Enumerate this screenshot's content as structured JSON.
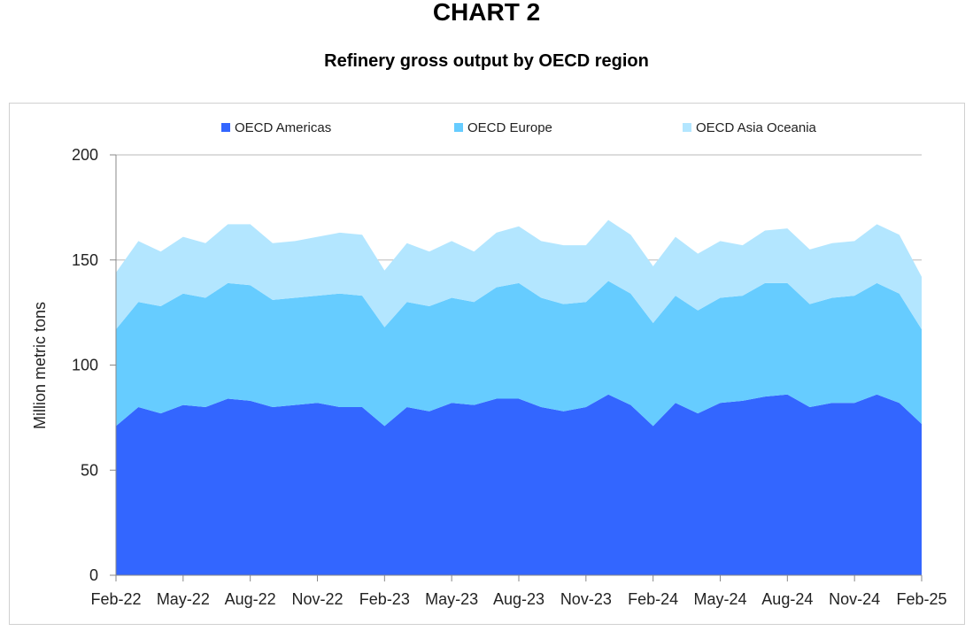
{
  "header": {
    "title": "CHART 2",
    "subtitle": "Refinery gross output by OECD region"
  },
  "chart_data": {
    "type": "area",
    "stacked": true,
    "title": "Refinery gross output by OECD region",
    "xlabel": "",
    "ylabel": "Million metric tons",
    "ylim": [
      0,
      200
    ],
    "yticks": [
      0,
      50,
      100,
      150,
      200
    ],
    "grid": "horizontal",
    "legend_position": "top",
    "x": [
      "Feb-22",
      "Mar-22",
      "Apr-22",
      "May-22",
      "Jun-22",
      "Jul-22",
      "Aug-22",
      "Sep-22",
      "Oct-22",
      "Nov-22",
      "Dec-22",
      "Jan-23",
      "Feb-23",
      "Mar-23",
      "Apr-23",
      "May-23",
      "Jun-23",
      "Jul-23",
      "Aug-23",
      "Sep-23",
      "Oct-23",
      "Nov-23",
      "Dec-23",
      "Jan-24",
      "Feb-24",
      "Mar-24",
      "Apr-24",
      "May-24",
      "Jun-24",
      "Jul-24",
      "Aug-24",
      "Sep-24",
      "Oct-24",
      "Nov-24",
      "Dec-24",
      "Jan-25",
      "Feb-25"
    ],
    "x_tick_labels": [
      "Feb-22",
      "May-22",
      "Aug-22",
      "Nov-22",
      "Feb-23",
      "May-23",
      "Aug-23",
      "Nov-23",
      "Feb-24",
      "May-24",
      "Aug-24",
      "Nov-24",
      "Feb-25"
    ],
    "series": [
      {
        "name": "OECD Americas",
        "color": "#3366ff",
        "values": [
          71,
          80,
          77,
          81,
          80,
          84,
          83,
          80,
          81,
          82,
          80,
          80,
          71,
          80,
          78,
          82,
          81,
          84,
          84,
          80,
          78,
          80,
          86,
          81,
          71,
          82,
          77,
          82,
          83,
          85,
          86,
          80,
          82,
          82,
          86,
          82,
          72
        ]
      },
      {
        "name": "OECD Europe",
        "color": "#66ccff",
        "values": [
          46,
          50,
          51,
          53,
          52,
          55,
          55,
          51,
          51,
          51,
          54,
          53,
          47,
          50,
          50,
          50,
          49,
          53,
          55,
          52,
          51,
          50,
          54,
          53,
          49,
          51,
          49,
          50,
          50,
          54,
          53,
          49,
          50,
          51,
          53,
          52,
          45
        ]
      },
      {
        "name": "OECD Asia Oceania",
        "color": "#b3e6ff",
        "values": [
          27,
          29,
          26,
          27,
          26,
          28,
          29,
          27,
          27,
          28,
          29,
          29,
          27,
          28,
          26,
          27,
          24,
          26,
          27,
          27,
          28,
          27,
          29,
          28,
          27,
          28,
          27,
          27,
          24,
          25,
          26,
          26,
          26,
          26,
          28,
          28,
          25
        ]
      }
    ]
  }
}
